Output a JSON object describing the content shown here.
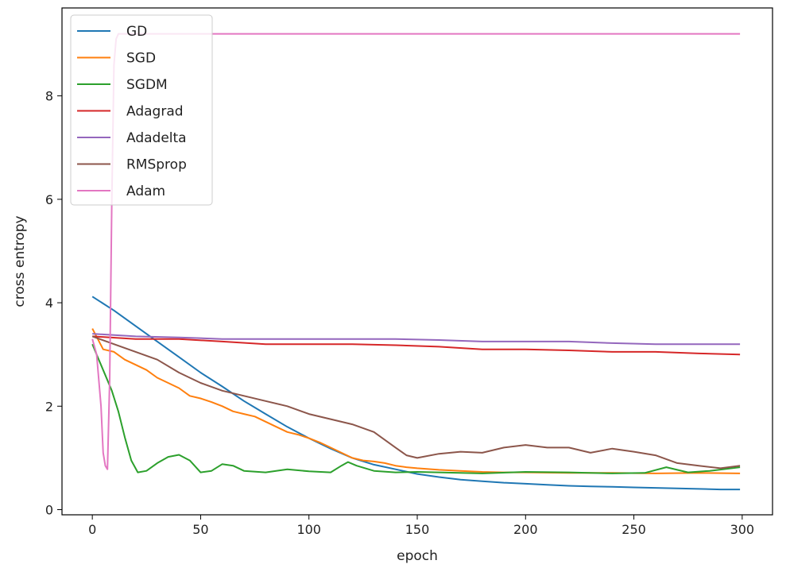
{
  "chart_data": {
    "type": "line",
    "xlabel": "epoch",
    "ylabel": "cross entropy",
    "xlim": [
      -14,
      314
    ],
    "ylim": [
      -0.1,
      9.7
    ],
    "xticks": [
      0,
      50,
      100,
      150,
      200,
      250,
      300
    ],
    "yticks": [
      0,
      2,
      4,
      6,
      8
    ],
    "grid": false,
    "legend_position": "top-left",
    "series": [
      {
        "name": "GD",
        "color": "#1f77b4",
        "points": [
          [
            0,
            4.12
          ],
          [
            10,
            3.85
          ],
          [
            20,
            3.55
          ],
          [
            30,
            3.25
          ],
          [
            40,
            2.95
          ],
          [
            50,
            2.65
          ],
          [
            60,
            2.38
          ],
          [
            70,
            2.1
          ],
          [
            80,
            1.85
          ],
          [
            90,
            1.6
          ],
          [
            100,
            1.38
          ],
          [
            110,
            1.18
          ],
          [
            120,
            1.0
          ],
          [
            130,
            0.87
          ],
          [
            140,
            0.78
          ],
          [
            150,
            0.69
          ],
          [
            160,
            0.63
          ],
          [
            170,
            0.58
          ],
          [
            180,
            0.55
          ],
          [
            190,
            0.52
          ],
          [
            200,
            0.5
          ],
          [
            210,
            0.48
          ],
          [
            220,
            0.46
          ],
          [
            230,
            0.45
          ],
          [
            240,
            0.44
          ],
          [
            250,
            0.43
          ],
          [
            260,
            0.42
          ],
          [
            270,
            0.41
          ],
          [
            280,
            0.4
          ],
          [
            290,
            0.39
          ],
          [
            299,
            0.39
          ]
        ]
      },
      {
        "name": "SGD",
        "color": "#ff7f0e",
        "points": [
          [
            0,
            3.5
          ],
          [
            5,
            3.1
          ],
          [
            10,
            3.05
          ],
          [
            15,
            2.9
          ],
          [
            20,
            2.8
          ],
          [
            25,
            2.7
          ],
          [
            30,
            2.55
          ],
          [
            35,
            2.45
          ],
          [
            40,
            2.35
          ],
          [
            45,
            2.2
          ],
          [
            50,
            2.15
          ],
          [
            55,
            2.08
          ],
          [
            60,
            2.0
          ],
          [
            65,
            1.9
          ],
          [
            70,
            1.85
          ],
          [
            75,
            1.8
          ],
          [
            80,
            1.7
          ],
          [
            85,
            1.6
          ],
          [
            90,
            1.5
          ],
          [
            95,
            1.45
          ],
          [
            100,
            1.38
          ],
          [
            105,
            1.3
          ],
          [
            110,
            1.2
          ],
          [
            115,
            1.1
          ],
          [
            120,
            1.0
          ],
          [
            125,
            0.95
          ],
          [
            130,
            0.93
          ],
          [
            135,
            0.9
          ],
          [
            140,
            0.85
          ],
          [
            145,
            0.82
          ],
          [
            150,
            0.8
          ],
          [
            160,
            0.77
          ],
          [
            170,
            0.75
          ],
          [
            180,
            0.73
          ],
          [
            190,
            0.72
          ],
          [
            200,
            0.72
          ],
          [
            220,
            0.71
          ],
          [
            240,
            0.71
          ],
          [
            260,
            0.7
          ],
          [
            280,
            0.71
          ],
          [
            299,
            0.7
          ]
        ]
      },
      {
        "name": "SGDM",
        "color": "#2ca02c",
        "points": [
          [
            0,
            3.2
          ],
          [
            3,
            2.9
          ],
          [
            6,
            2.6
          ],
          [
            9,
            2.3
          ],
          [
            12,
            1.9
          ],
          [
            15,
            1.4
          ],
          [
            18,
            0.95
          ],
          [
            21,
            0.72
          ],
          [
            25,
            0.75
          ],
          [
            30,
            0.9
          ],
          [
            35,
            1.02
          ],
          [
            40,
            1.06
          ],
          [
            45,
            0.95
          ],
          [
            50,
            0.72
          ],
          [
            55,
            0.75
          ],
          [
            60,
            0.88
          ],
          [
            65,
            0.85
          ],
          [
            70,
            0.75
          ],
          [
            80,
            0.72
          ],
          [
            90,
            0.78
          ],
          [
            100,
            0.74
          ],
          [
            110,
            0.72
          ],
          [
            115,
            0.85
          ],
          [
            118,
            0.92
          ],
          [
            122,
            0.85
          ],
          [
            130,
            0.75
          ],
          [
            140,
            0.72
          ],
          [
            150,
            0.73
          ],
          [
            160,
            0.72
          ],
          [
            180,
            0.7
          ],
          [
            200,
            0.73
          ],
          [
            220,
            0.72
          ],
          [
            240,
            0.7
          ],
          [
            255,
            0.71
          ],
          [
            265,
            0.82
          ],
          [
            275,
            0.72
          ],
          [
            285,
            0.75
          ],
          [
            299,
            0.82
          ]
        ]
      },
      {
        "name": "Adagrad",
        "color": "#d62728",
        "points": [
          [
            0,
            3.35
          ],
          [
            20,
            3.3
          ],
          [
            40,
            3.3
          ],
          [
            60,
            3.25
          ],
          [
            80,
            3.2
          ],
          [
            100,
            3.2
          ],
          [
            120,
            3.2
          ],
          [
            140,
            3.18
          ],
          [
            160,
            3.15
          ],
          [
            180,
            3.1
          ],
          [
            200,
            3.1
          ],
          [
            220,
            3.08
          ],
          [
            240,
            3.05
          ],
          [
            260,
            3.05
          ],
          [
            280,
            3.02
          ],
          [
            299,
            3.0
          ]
        ]
      },
      {
        "name": "Adadelta",
        "color": "#9467bd",
        "points": [
          [
            0,
            3.4
          ],
          [
            20,
            3.35
          ],
          [
            40,
            3.33
          ],
          [
            60,
            3.3
          ],
          [
            80,
            3.3
          ],
          [
            100,
            3.3
          ],
          [
            120,
            3.3
          ],
          [
            140,
            3.3
          ],
          [
            160,
            3.28
          ],
          [
            180,
            3.25
          ],
          [
            200,
            3.25
          ],
          [
            220,
            3.25
          ],
          [
            240,
            3.22
          ],
          [
            260,
            3.2
          ],
          [
            280,
            3.2
          ],
          [
            299,
            3.2
          ]
        ]
      },
      {
        "name": "RMSprop",
        "color": "#8c564b",
        "points": [
          [
            0,
            3.35
          ],
          [
            10,
            3.2
          ],
          [
            20,
            3.05
          ],
          [
            30,
            2.9
          ],
          [
            40,
            2.65
          ],
          [
            50,
            2.45
          ],
          [
            60,
            2.3
          ],
          [
            70,
            2.2
          ],
          [
            80,
            2.1
          ],
          [
            90,
            2.0
          ],
          [
            100,
            1.85
          ],
          [
            110,
            1.75
          ],
          [
            120,
            1.65
          ],
          [
            130,
            1.5
          ],
          [
            140,
            1.2
          ],
          [
            145,
            1.05
          ],
          [
            150,
            1.0
          ],
          [
            160,
            1.08
          ],
          [
            170,
            1.12
          ],
          [
            180,
            1.1
          ],
          [
            190,
            1.2
          ],
          [
            200,
            1.25
          ],
          [
            210,
            1.2
          ],
          [
            220,
            1.2
          ],
          [
            230,
            1.1
          ],
          [
            240,
            1.18
          ],
          [
            250,
            1.12
          ],
          [
            260,
            1.05
          ],
          [
            270,
            0.9
          ],
          [
            280,
            0.85
          ],
          [
            290,
            0.8
          ],
          [
            299,
            0.85
          ]
        ]
      },
      {
        "name": "Adam",
        "color": "#e377c2",
        "points": [
          [
            0,
            3.3
          ],
          [
            2,
            3.0
          ],
          [
            4,
            2.0
          ],
          [
            5,
            1.1
          ],
          [
            6,
            0.85
          ],
          [
            7,
            0.78
          ],
          [
            8,
            2.5
          ],
          [
            9,
            6.0
          ],
          [
            10,
            8.6
          ],
          [
            11,
            9.1
          ],
          [
            12,
            9.2
          ],
          [
            13,
            9.2
          ],
          [
            20,
            9.2
          ],
          [
            50,
            9.2
          ],
          [
            100,
            9.2
          ],
          [
            150,
            9.2
          ],
          [
            200,
            9.2
          ],
          [
            250,
            9.2
          ],
          [
            299,
            9.2
          ]
        ]
      }
    ]
  }
}
